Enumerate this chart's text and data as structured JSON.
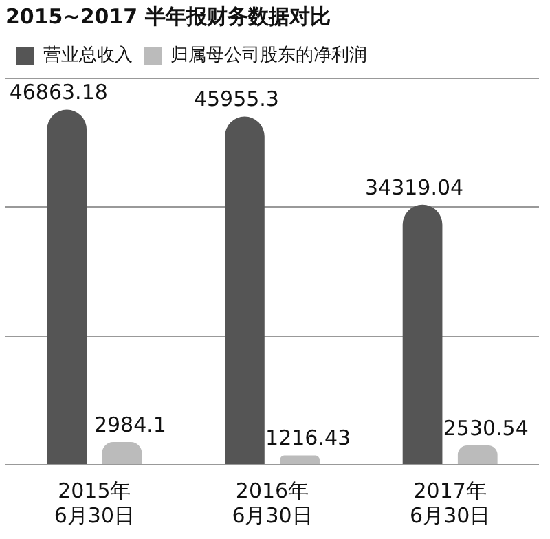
{
  "chart_data": {
    "type": "bar",
    "title": "2015~2017 半年报财务数据对比",
    "categories": [
      "2015年\n6月30日",
      "2016年\n6月30日",
      "2017年\n6月30日"
    ],
    "series": [
      {
        "name": "营业总收入",
        "color": "#555555",
        "values": [
          46863.18,
          45955.3,
          34319.04
        ]
      },
      {
        "name": "归属母公司股东的净利润",
        "color": "#bbbbbb",
        "values": [
          2984.1,
          1216.43,
          2530.54
        ]
      }
    ],
    "ylim": [
      0,
      51000
    ],
    "yticks": [
      {
        "value": 0,
        "label": null
      },
      {
        "value": 17000,
        "label": null
      },
      {
        "value": 34000,
        "label": null
      },
      {
        "value": 51000,
        "label": null
      }
    ],
    "tick_labels": "x",
    "grid": "y",
    "legend": "top left",
    "data_labels": true
  }
}
